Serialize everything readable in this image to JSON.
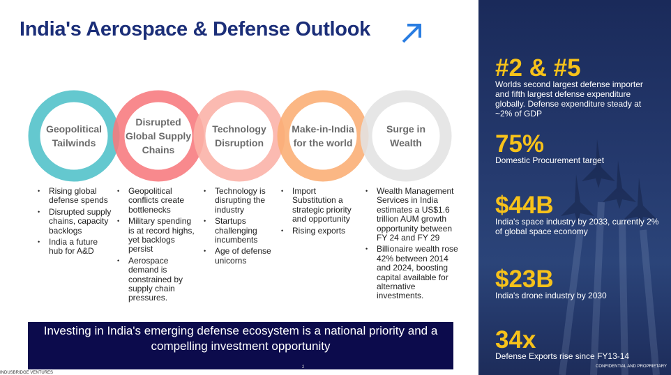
{
  "title": "India's Aerospace & Defense Outlook",
  "pillars": [
    {
      "label": "Geopolitical Tailwinds",
      "bullets": [
        "Rising global defense spends",
        "Disrupted supply chains, capacity backlogs",
        "India a future hub for A&D"
      ]
    },
    {
      "label": "Disrupted Global Supply Chains",
      "bullets": [
        "Geopolitical conflicts create bottlenecks",
        "Military spending is at record highs, yet backlogs persist",
        "Aerospace demand is constrained by supply chain pressures."
      ]
    },
    {
      "label": "Technology Disruption",
      "bullets": [
        "Technology is disrupting the industry",
        "Startups challenging incumbents",
        "Age of defense unicorns"
      ]
    },
    {
      "label": "Make-in-India for the world",
      "bullets": [
        "Import Substitution a strategic priority and opportunity",
        "Rising exports"
      ]
    },
    {
      "label": "Surge in Wealth",
      "bullets": [
        "Wealth Management Services in India estimates a US$1.6 trillion AUM growth opportunity between FY 24 and FY 29",
        "Billionaire wealth rose 42% between 2014 and 2024, boosting capital available for alternative investments."
      ]
    }
  ],
  "banner": "Investing in India's emerging defense ecosystem is a national priority and a compelling investment opportunity",
  "stats": [
    {
      "value": "#2 & #5",
      "description": "Worlds second largest defense importer and fifth largest defense expenditure globally. Defense expenditure steady at ~2% of GDP"
    },
    {
      "value": "75%",
      "description": "Domestic Procurement target"
    },
    {
      "value": "$44B",
      "description": "India's space industry by 2033, currently 2% of global space economy"
    },
    {
      "value": "$23B",
      "description": "India's drone industry by 2030"
    },
    {
      "value": "34x",
      "description": "Defense Exports rise since FY13-14"
    }
  ],
  "footer": {
    "company": "INDUSBRIDGE VENTURES",
    "page": "2",
    "confidential": "CONFIDENTIAL AND PROPRIETARY"
  }
}
